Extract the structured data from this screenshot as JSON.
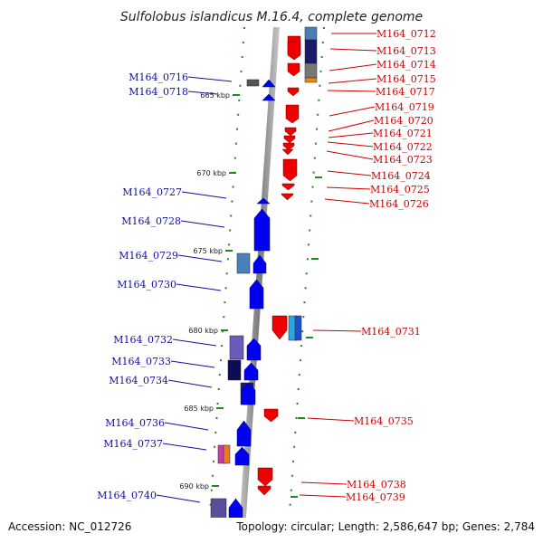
{
  "title": "Sulfolobus islandicus M.16.4, complete genome",
  "footer": {
    "accession": "Accession: NC_012726",
    "summary": "Topology: circular; Length: 2,586,647 bp; Genes: 2,784"
  },
  "colors": {
    "forward_gene": "#0000ee",
    "reverse_gene": "#ee0000",
    "forward_label": "#1010a0",
    "reverse_label": "#cc0000",
    "tick": "#1c8a1c",
    "backbone": "#8a8a8a"
  },
  "ticks": [
    "665 kbp",
    "670 kbp",
    "675 kbp",
    "680 kbp",
    "685 kbp",
    "690 kbp"
  ],
  "forward_labels": [
    "M164_0716",
    "M164_0718",
    "M164_0727",
    "M164_0728",
    "M164_0729",
    "M164_0730",
    "M164_0732",
    "M164_0733",
    "M164_0734",
    "M164_0736",
    "M164_0737",
    "M164_0740"
  ],
  "reverse_labels": [
    "M164_0712",
    "M164_0713",
    "M164_0714",
    "M164_0715",
    "M164_0717",
    "M164_0719",
    "M164_0720",
    "M164_0721",
    "M164_0722",
    "M164_0723",
    "M164_0724",
    "M164_0725",
    "M164_0726",
    "M164_0731",
    "M164_0735",
    "M164_0738",
    "M164_0739"
  ]
}
